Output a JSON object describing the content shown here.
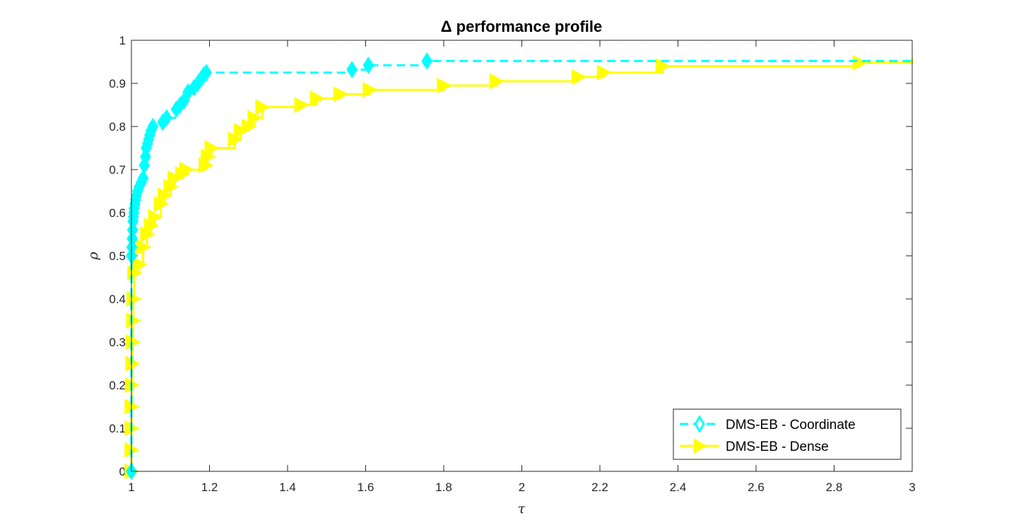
{
  "chart_data": {
    "type": "line",
    "title": "Δ performance profile",
    "xlabel": "τ",
    "ylabel": "ρ",
    "xlim": [
      1,
      3
    ],
    "ylim": [
      0,
      1
    ],
    "x_ticks": [
      "1",
      "1.2",
      "1.4",
      "1.6",
      "1.8",
      "2",
      "2.2",
      "2.4",
      "2.6",
      "2.8",
      "3"
    ],
    "y_ticks": [
      "0",
      "0.1",
      "0.2",
      "0.3",
      "0.4",
      "0.5",
      "0.6",
      "0.7",
      "0.8",
      "0.9",
      "1"
    ],
    "legend_position": "bottom-right",
    "series": [
      {
        "name": "DMS-EB - Coordinate",
        "color": "#00ffff",
        "line_style": "dashed",
        "marker": "diamond",
        "x": [
          1.0,
          1.0,
          1.001,
          1.002,
          1.003,
          1.004,
          1.005,
          1.006,
          1.007,
          1.009,
          1.011,
          1.013,
          1.016,
          1.02,
          1.025,
          1.03,
          1.033,
          1.036,
          1.038,
          1.041,
          1.044,
          1.047,
          1.05,
          1.055,
          1.08,
          1.09,
          1.115,
          1.125,
          1.135,
          1.145,
          1.16,
          1.17,
          1.178,
          1.186,
          1.192,
          1.565,
          1.607,
          1.757
        ],
        "y": [
          0.0,
          0.5,
          0.52,
          0.54,
          0.56,
          0.58,
          0.59,
          0.6,
          0.61,
          0.62,
          0.63,
          0.64,
          0.65,
          0.66,
          0.67,
          0.68,
          0.71,
          0.73,
          0.75,
          0.76,
          0.77,
          0.78,
          0.79,
          0.8,
          0.81,
          0.82,
          0.84,
          0.85,
          0.86,
          0.88,
          0.89,
          0.9,
          0.91,
          0.92,
          0.925,
          0.932,
          0.942,
          0.952
        ],
        "end_x": 3.0,
        "end_y": 0.958
      },
      {
        "name": "DMS-EB - Dense",
        "color": "#ffff00",
        "line_style": "solid",
        "marker": "triangle-right",
        "x": [
          1.0,
          1.0,
          1.0,
          1.0,
          1.001,
          1.002,
          1.003,
          1.004,
          1.005,
          1.007,
          1.02,
          1.03,
          1.04,
          1.05,
          1.06,
          1.075,
          1.085,
          1.1,
          1.11,
          1.13,
          1.14,
          1.19,
          1.195,
          1.205,
          1.265,
          1.28,
          1.3,
          1.315,
          1.335,
          1.435,
          1.475,
          1.535,
          1.61,
          1.8,
          1.935,
          2.145,
          2.21,
          2.36,
          2.865
        ],
        "y": [
          0.0,
          0.05,
          0.1,
          0.15,
          0.2,
          0.25,
          0.3,
          0.35,
          0.4,
          0.46,
          0.48,
          0.52,
          0.55,
          0.57,
          0.59,
          0.62,
          0.64,
          0.66,
          0.68,
          0.69,
          0.7,
          0.71,
          0.73,
          0.75,
          0.77,
          0.79,
          0.8,
          0.82,
          0.845,
          0.85,
          0.865,
          0.875,
          0.885,
          0.895,
          0.905,
          0.915,
          0.925,
          0.94,
          0.948
        ],
        "end_x": 3.0,
        "end_y": 0.958
      }
    ]
  }
}
